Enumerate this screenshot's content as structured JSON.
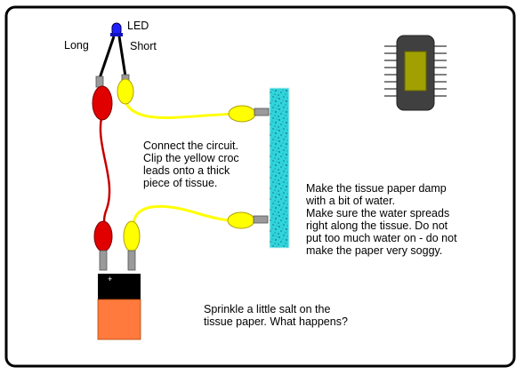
{
  "labels": {
    "led": "LED",
    "long": "Long",
    "short": "Short"
  },
  "instructions": {
    "connect": "Connect the circuit.\nClip the yellow croc\nleads onto a thick\npiece of tissue.",
    "damp": "Make the tissue paper damp\nwith a bit of water.\nMake sure the water spreads\nright along the tissue. Do not\nput too much water on - do not\nmake the paper very soggy.",
    "salt": "Sprinkle a little salt on the\ntissue paper. What happens?"
  },
  "battery": {
    "terminal_sign": "+"
  },
  "colors": {
    "red_lead": "#e00000",
    "yellow_lead": "#ffff00",
    "tissue": "#28d0d8",
    "battery_top": "#000000",
    "battery_body": "#ff7a3c",
    "led": "#2020ff",
    "chip_body": "#404040",
    "chip_core": "#a0a000"
  }
}
